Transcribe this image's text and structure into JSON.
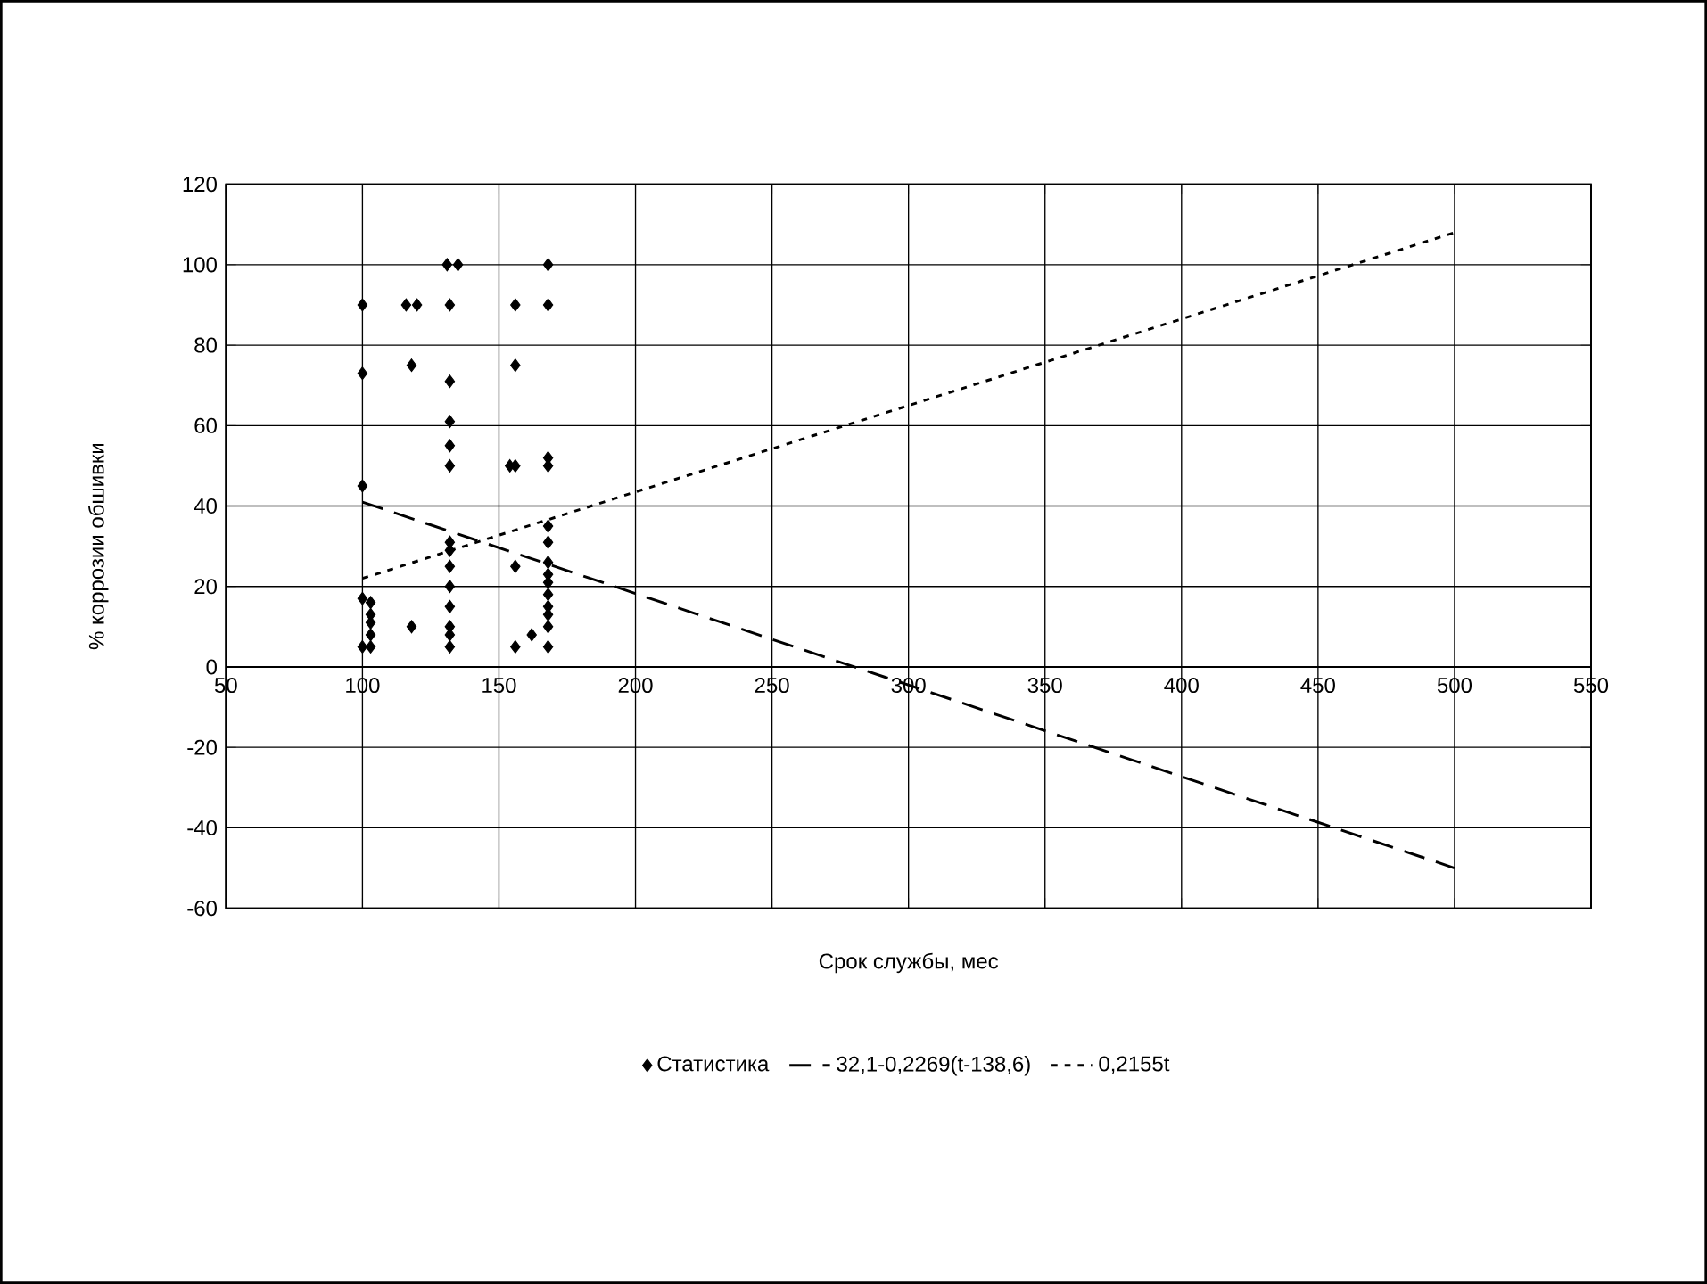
{
  "chart_data": {
    "type": "scatter",
    "xlabel": "Срок службы, мес",
    "ylabel": "% коррозии обшивки",
    "xlim": [
      50,
      550
    ],
    "ylim": [
      -60,
      120
    ],
    "xticks": [
      50,
      100,
      150,
      200,
      250,
      300,
      350,
      400,
      450,
      500,
      550
    ],
    "yticks": [
      -60,
      -40,
      -20,
      0,
      20,
      40,
      60,
      80,
      100,
      120
    ],
    "grid": true,
    "legend": "bottom",
    "series": [
      {
        "name": "Статистика",
        "color": "#000000",
        "marker": "diamond",
        "x": [
          100,
          100,
          100,
          100,
          100,
          103,
          103,
          103,
          103,
          103,
          116,
          120,
          118,
          118,
          131,
          135,
          132,
          132,
          132,
          132,
          132,
          132,
          132,
          132,
          132,
          132,
          132,
          132,
          132,
          156,
          156,
          154,
          156,
          156,
          156,
          162,
          168,
          168,
          168,
          168,
          168,
          168,
          168,
          168,
          168,
          168,
          168,
          168,
          168,
          168
        ],
        "values": [
          90,
          73,
          45,
          17,
          5,
          16,
          13,
          11,
          8,
          5,
          90,
          90,
          75,
          10,
          100,
          100,
          90,
          71,
          61,
          55,
          50,
          31,
          29,
          25,
          20,
          15,
          10,
          8,
          5,
          90,
          75,
          50,
          50,
          25,
          5,
          8,
          100,
          90,
          52,
          50,
          35,
          31,
          26,
          23,
          21,
          18,
          15,
          13,
          10,
          5
        ]
      },
      {
        "name": "32,1-0,2269(t-138,6)",
        "type": "line",
        "color": "#000000",
        "line_style": "dashed",
        "x": [
          100,
          500
        ],
        "values": [
          41,
          -50
        ]
      },
      {
        "name": "0,2155t",
        "type": "line",
        "color": "#000000",
        "line_style": "dotted",
        "x": [
          100,
          500
        ],
        "values": [
          22,
          108
        ]
      }
    ]
  }
}
